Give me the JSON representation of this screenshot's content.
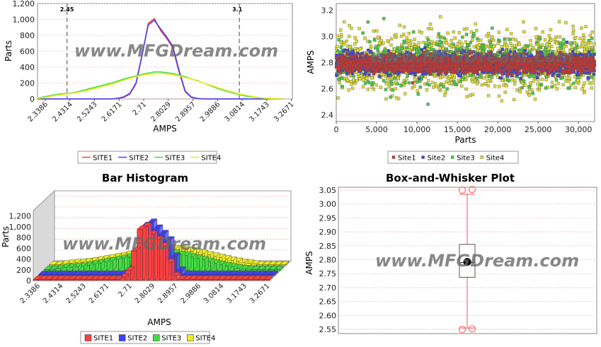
{
  "watermark": "www.MFGDream.com",
  "chart_data": [
    {
      "id": "line",
      "type": "line",
      "title": "",
      "xlabel": "AMPS",
      "ylabel": "Parts",
      "xlim": [
        2.3386,
        3.3
      ],
      "ylim": [
        0,
        1200
      ],
      "yticks": [
        0,
        200,
        400,
        600,
        800,
        1000,
        1200
      ],
      "ytick_labels": [
        "0",
        "200",
        "400",
        "600",
        "800",
        "1,000",
        "1,200"
      ],
      "xtick_labels": [
        "2.3386",
        "2.4314",
        "2.5243",
        "2.6171",
        "2.71",
        "2.8029",
        "2.8957",
        "2.9886",
        "3.0814",
        "3.1743",
        "3.2671"
      ],
      "markers": [
        {
          "value": 2.45,
          "label": "2.45"
        },
        {
          "value": 3.1,
          "label": "3.1"
        }
      ],
      "x": [
        2.3386,
        2.3618,
        2.385,
        2.4082,
        2.4314,
        2.4546,
        2.4779,
        2.5011,
        2.5243,
        2.5475,
        2.5707,
        2.5939,
        2.6171,
        2.6403,
        2.6636,
        2.6868,
        2.71,
        2.7332,
        2.7564,
        2.7796,
        2.8029,
        2.8261,
        2.8493,
        2.8725,
        2.8957,
        2.9189,
        2.9422,
        2.9654,
        2.9886,
        3.0118,
        3.035,
        3.0582,
        3.0814,
        3.1046,
        3.1279,
        3.1511,
        3.1743,
        3.1975,
        3.2207,
        3.2439,
        3.2671
      ],
      "series": [
        {
          "name": "SITE1",
          "color": "#ff4040",
          "values": [
            0,
            0,
            0,
            0,
            0,
            0,
            0,
            0,
            0,
            0,
            0,
            0,
            0,
            5,
            20,
            60,
            190,
            550,
            950,
            1010,
            860,
            760,
            640,
            340,
            90,
            20,
            5,
            0,
            0,
            0,
            0,
            0,
            0,
            0,
            0,
            0,
            0,
            0,
            0,
            0,
            0
          ]
        },
        {
          "name": "SITE2",
          "color": "#4040ff",
          "values": [
            0,
            0,
            0,
            0,
            0,
            0,
            0,
            0,
            0,
            0,
            0,
            0,
            0,
            8,
            25,
            70,
            200,
            560,
            930,
            990,
            880,
            780,
            660,
            360,
            100,
            25,
            5,
            0,
            0,
            0,
            0,
            0,
            0,
            0,
            0,
            0,
            0,
            0,
            0,
            0,
            0
          ]
        },
        {
          "name": "SITE3",
          "color": "#40dd40",
          "values": [
            10,
            25,
            40,
            55,
            65,
            70,
            80,
            100,
            120,
            140,
            160,
            180,
            200,
            225,
            250,
            270,
            290,
            310,
            325,
            340,
            340,
            330,
            320,
            300,
            280,
            250,
            230,
            200,
            170,
            140,
            115,
            90,
            70,
            50,
            35,
            25,
            15,
            8,
            4,
            2,
            0
          ]
        },
        {
          "name": "SITE4",
          "color": "#ecec20",
          "values": [
            5,
            15,
            30,
            45,
            55,
            65,
            75,
            90,
            105,
            125,
            145,
            165,
            185,
            210,
            235,
            260,
            280,
            300,
            310,
            315,
            320,
            315,
            305,
            290,
            270,
            250,
            225,
            200,
            175,
            150,
            125,
            100,
            80,
            60,
            45,
            30,
            18,
            10,
            5,
            2,
            0
          ]
        }
      ]
    },
    {
      "id": "scatter",
      "type": "scatter",
      "title": "",
      "xlabel": "Parts",
      "ylabel": "AMPS",
      "xlim": [
        0,
        32000
      ],
      "ylim": [
        2.35,
        3.25
      ],
      "xticks": [
        0,
        5000,
        10000,
        15000,
        20000,
        25000,
        30000
      ],
      "xtick_labels": [
        "0",
        "5,000",
        "10,000",
        "15,000",
        "20,000",
        "25,000",
        "30,000"
      ],
      "yticks": [
        2.4,
        2.6,
        2.8,
        3.0,
        3.2
      ],
      "ytick_labels": [
        "2.4",
        "2.6",
        "2.8",
        "3.0",
        "3.2"
      ],
      "series": [
        {
          "name": "Site1",
          "color": "#cc3333",
          "center": 2.79,
          "spread": 0.055
        },
        {
          "name": "Site2",
          "color": "#4444dd",
          "center": 2.79,
          "spread": 0.07
        },
        {
          "name": "Site3",
          "color": "#44cc44",
          "center": 2.8,
          "spread": 0.17
        },
        {
          "name": "Site4",
          "color": "#dddd33",
          "center": 2.8,
          "spread": 0.19
        }
      ]
    },
    {
      "id": "bar3d",
      "type": "bar",
      "title": "Bar Histogram",
      "xlabel": "AMPS",
      "ylabel": "Parts",
      "ylim": [
        0,
        1300
      ],
      "yticks": [
        0,
        200,
        400,
        600,
        800,
        1000,
        1200
      ],
      "ytick_labels": [
        "0",
        "200",
        "400",
        "600",
        "800",
        "1,000",
        "1,200"
      ],
      "xtick_labels": [
        "2.3386",
        "2.4314",
        "2.5243",
        "2.6171",
        "2.71",
        "2.8029",
        "2.8957",
        "2.9886",
        "3.0814",
        "3.1743",
        "3.2671"
      ],
      "categories_count": 41,
      "series": [
        {
          "name": "SITE1",
          "color": "#ff4040",
          "values": [
            0,
            0,
            0,
            0,
            0,
            0,
            0,
            0,
            0,
            0,
            0,
            0,
            0,
            5,
            20,
            60,
            190,
            550,
            950,
            1010,
            860,
            760,
            640,
            340,
            90,
            20,
            5,
            0,
            0,
            0,
            0,
            0,
            0,
            0,
            0,
            0,
            0,
            0,
            0,
            0,
            0
          ]
        },
        {
          "name": "SITE2",
          "color": "#4040ff",
          "values": [
            0,
            0,
            0,
            0,
            0,
            0,
            0,
            0,
            0,
            0,
            0,
            0,
            0,
            8,
            25,
            70,
            200,
            560,
            930,
            990,
            880,
            780,
            660,
            360,
            100,
            25,
            5,
            0,
            0,
            0,
            0,
            0,
            0,
            0,
            0,
            0,
            0,
            0,
            0,
            0,
            0
          ]
        },
        {
          "name": "SITE3",
          "color": "#40dd40",
          "values": [
            10,
            25,
            40,
            55,
            65,
            70,
            80,
            100,
            120,
            140,
            160,
            180,
            200,
            225,
            250,
            270,
            290,
            310,
            325,
            340,
            340,
            330,
            320,
            300,
            280,
            250,
            230,
            200,
            170,
            140,
            115,
            90,
            70,
            50,
            35,
            25,
            15,
            8,
            4,
            2,
            0
          ]
        },
        {
          "name": "SITE4",
          "color": "#ecec20",
          "values": [
            5,
            15,
            30,
            45,
            55,
            65,
            75,
            90,
            105,
            125,
            145,
            165,
            185,
            210,
            235,
            260,
            280,
            300,
            310,
            315,
            320,
            315,
            305,
            290,
            270,
            250,
            225,
            200,
            175,
            150,
            125,
            100,
            80,
            60,
            45,
            30,
            18,
            10,
            5,
            2,
            0
          ]
        }
      ]
    },
    {
      "id": "box",
      "type": "box",
      "title": "Box-and-Whisker Plot",
      "xlabel": "",
      "ylabel": "AMPS",
      "ylim": [
        2.535,
        3.06
      ],
      "yticks": [
        2.55,
        2.6,
        2.65,
        2.7,
        2.75,
        2.8,
        2.85,
        2.9,
        2.95,
        3.0,
        3.05
      ],
      "ytick_labels": [
        "2.55",
        "2.60",
        "2.65",
        "2.70",
        "2.75",
        "2.80",
        "2.85",
        "2.90",
        "2.95",
        "3.00",
        "3.05"
      ],
      "stats": {
        "whisker_low": 2.555,
        "q1": 2.737,
        "median": 2.79,
        "mean": 2.792,
        "q3": 2.855,
        "whisker_high": 3.035
      },
      "outliers": [
        2.55,
        2.552,
        3.05,
        3.052
      ]
    }
  ]
}
